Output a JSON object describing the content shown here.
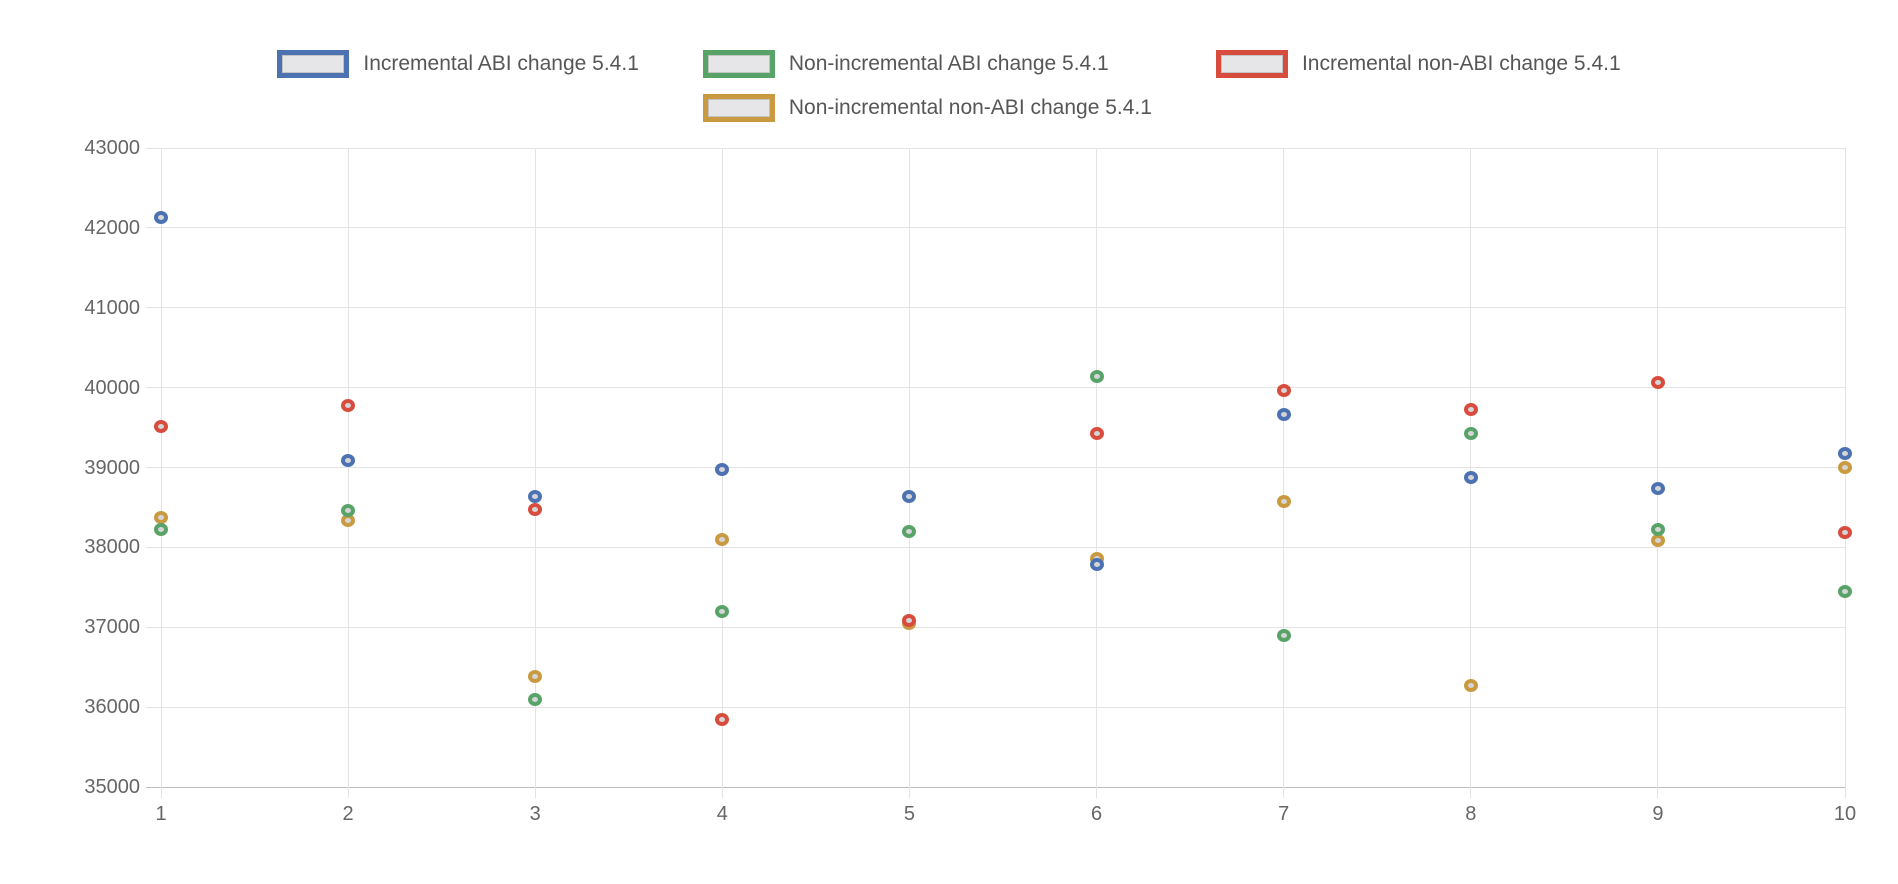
{
  "legend": {
    "items": [
      {
        "label": "Incremental ABI change 5.4.1",
        "color": "#4c72b2"
      },
      {
        "label": "Non-incremental ABI change 5.4.1",
        "color": "#58a368"
      },
      {
        "label": "Incremental non-ABI change 5.4.1",
        "color": "#d84c3e"
      },
      {
        "label": "Non-incremental non-ABI change 5.4.1",
        "color": "#ca9a41"
      }
    ]
  },
  "chart_data": {
    "type": "scatter",
    "x": [
      1,
      2,
      3,
      4,
      5,
      6,
      7,
      8,
      9,
      10
    ],
    "series": [
      {
        "name": "Incremental ABI change 5.4.1",
        "color": "#4c72b2",
        "values": [
          42130,
          39090,
          38640,
          38970,
          38640,
          37780,
          39660,
          38880,
          38740,
          39180
        ]
      },
      {
        "name": "Non-incremental ABI change 5.4.1",
        "color": "#58a368",
        "values": [
          38220,
          38460,
          36100,
          37200,
          38200,
          40140,
          36900,
          39420,
          38220,
          37450
        ]
      },
      {
        "name": "Incremental non-ABI change 5.4.1",
        "color": "#d84c3e",
        "values": [
          39510,
          39770,
          38480,
          35850,
          37090,
          39430,
          39960,
          39720,
          40060,
          38190
        ]
      },
      {
        "name": "Non-incremental non-ABI change 5.4.1",
        "color": "#ca9a41",
        "values": [
          38370,
          38340,
          36380,
          38100,
          37050,
          37860,
          38570,
          36270,
          38090,
          39000
        ]
      }
    ],
    "title": "",
    "xlabel": "",
    "ylabel": "",
    "ylim": [
      35000,
      43000
    ],
    "ytick_step": 1000,
    "yticks": [
      35000,
      36000,
      37000,
      38000,
      39000,
      40000,
      41000,
      42000,
      43000
    ],
    "xticks": [
      1,
      2,
      3,
      4,
      5,
      6,
      7,
      8,
      9,
      10
    ],
    "grid": true,
    "legend_position": "top",
    "marker_fill": "#d5d5d7"
  }
}
